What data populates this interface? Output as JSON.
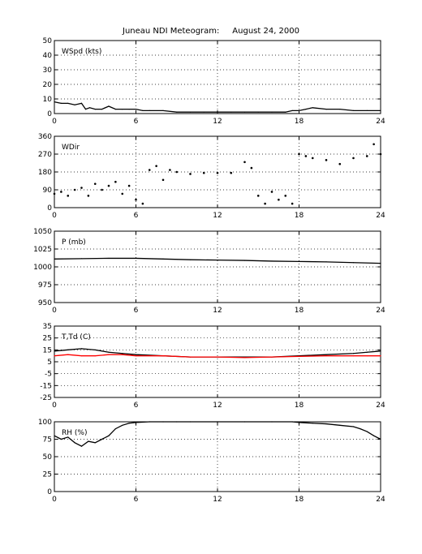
{
  "title": "Juneau NDI Meteogram:     August 24, 2000",
  "chart_data": [
    {
      "type": "line",
      "label": "WSpd (kts)",
      "ylim": [
        0,
        50
      ],
      "yticks": [
        0,
        10,
        20,
        30,
        40,
        50
      ],
      "xlim": [
        0,
        24
      ],
      "xticks": [
        0,
        6,
        12,
        18,
        24
      ],
      "grid": true,
      "series": [
        {
          "color": "#000000",
          "style": "line",
          "x": [
            0,
            0.5,
            1,
            1.5,
            2,
            2.3,
            2.6,
            3,
            3.5,
            4,
            4.5,
            5,
            5.5,
            6,
            6.5,
            7,
            8,
            9,
            10,
            11,
            12,
            13,
            14,
            15,
            16,
            17,
            17.5,
            18,
            18.5,
            19,
            20,
            21,
            22,
            23,
            24
          ],
          "y": [
            8,
            7,
            7,
            6,
            7,
            3,
            4,
            3,
            3,
            5,
            3,
            3,
            3,
            3,
            2,
            2,
            2,
            1,
            1,
            1,
            1,
            1,
            1,
            1,
            1,
            1,
            2,
            2,
            3,
            4,
            3,
            3,
            2,
            2,
            2
          ]
        }
      ]
    },
    {
      "type": "scatter",
      "label": "WDir",
      "ylim": [
        0,
        360
      ],
      "yticks": [
        0,
        90,
        180,
        270,
        360
      ],
      "xlim": [
        0,
        24
      ],
      "xticks": [
        0,
        6,
        12,
        18,
        24
      ],
      "grid": true,
      "series": [
        {
          "color": "#000000",
          "style": "dots",
          "x": [
            0,
            0.5,
            1,
            1.5,
            2,
            2.5,
            3,
            3.5,
            4,
            4.5,
            5,
            5.5,
            6,
            6.5,
            7,
            7.5,
            8,
            8.5,
            9,
            10,
            11,
            12,
            13,
            14,
            14.5,
            15,
            15.5,
            16,
            16.5,
            17,
            17.5,
            18,
            18.5,
            19,
            20,
            21,
            22,
            23,
            23.5,
            24
          ],
          "y": [
            70,
            80,
            60,
            90,
            100,
            60,
            120,
            90,
            110,
            130,
            70,
            110,
            40,
            20,
            190,
            210,
            140,
            190,
            180,
            170,
            175,
            175,
            175,
            230,
            200,
            60,
            20,
            80,
            40,
            60,
            20,
            270,
            260,
            250,
            240,
            220,
            250,
            260,
            320,
            270
          ]
        }
      ]
    },
    {
      "type": "line",
      "label": "P (mb)",
      "ylim": [
        950,
        1050
      ],
      "yticks": [
        950,
        975,
        1000,
        1025,
        1050
      ],
      "xlim": [
        0,
        24
      ],
      "xticks": [
        0,
        6,
        12,
        18,
        24
      ],
      "grid": true,
      "series": [
        {
          "color": "#000000",
          "style": "line",
          "x": [
            0,
            2,
            4,
            6,
            8,
            10,
            12,
            14,
            16,
            18,
            20,
            22,
            24
          ],
          "y": [
            1011,
            1011.5,
            1012,
            1012,
            1011,
            1010,
            1009.5,
            1009,
            1008,
            1007.5,
            1007,
            1006,
            1005
          ]
        }
      ]
    },
    {
      "type": "line",
      "label": "T,Td (C)",
      "ylim": [
        -25,
        35
      ],
      "yticks": [
        -25,
        -15,
        -5,
        5,
        15,
        25,
        35
      ],
      "xlim": [
        0,
        24
      ],
      "xticks": [
        0,
        6,
        12,
        18,
        24
      ],
      "grid": true,
      "series": [
        {
          "color": "#000000",
          "style": "line",
          "x": [
            0,
            1,
            2,
            3,
            4,
            5,
            6,
            8,
            10,
            12,
            14,
            16,
            18,
            20,
            22,
            23,
            24
          ],
          "y": [
            14,
            15,
            16,
            15,
            13,
            12,
            11,
            10,
            9,
            9,
            9,
            9,
            10,
            11,
            12,
            13,
            14
          ]
        },
        {
          "color": "#ff0000",
          "style": "line",
          "x": [
            0,
            1,
            2,
            3,
            4,
            5,
            6,
            8,
            10,
            12,
            14,
            16,
            18,
            20,
            22,
            23,
            24
          ],
          "y": [
            10,
            11,
            10,
            10,
            11,
            11,
            10,
            10,
            9,
            9,
            8.5,
            9,
            9.5,
            10,
            10,
            10,
            10
          ]
        }
      ]
    },
    {
      "type": "line",
      "label": "RH (%)",
      "ylim": [
        0,
        100
      ],
      "yticks": [
        0,
        25,
        50,
        75,
        100
      ],
      "xlim": [
        0,
        24
      ],
      "xticks": [
        0,
        6,
        12,
        18,
        24
      ],
      "grid": true,
      "series": [
        {
          "color": "#000000",
          "style": "line",
          "x": [
            0,
            0.5,
            1,
            1.5,
            2,
            2.5,
            3,
            3.5,
            4,
            4.5,
            5,
            5.5,
            6,
            7,
            8,
            9,
            10,
            12,
            14,
            16,
            17.5,
            18,
            19,
            20,
            21,
            22,
            22.5,
            23,
            23.5,
            24
          ],
          "y": [
            80,
            75,
            78,
            70,
            65,
            72,
            70,
            75,
            80,
            90,
            95,
            98,
            99,
            100,
            100,
            100,
            100,
            100,
            100,
            100,
            100,
            99,
            98,
            97,
            95,
            93,
            90,
            86,
            80,
            75
          ]
        }
      ]
    }
  ]
}
